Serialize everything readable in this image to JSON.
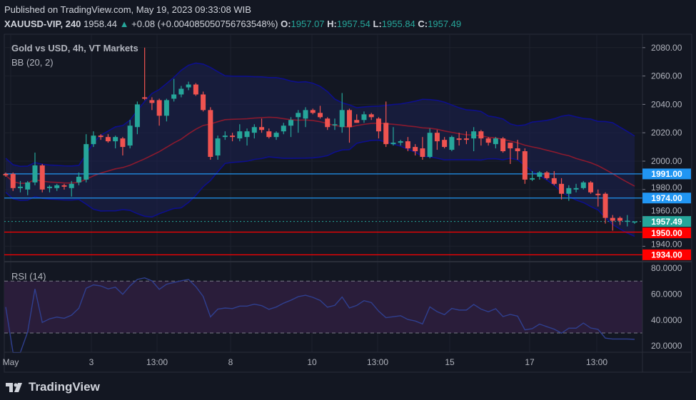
{
  "header": {
    "published": "Published on TradingView.com, May 19, 2023 09:33:08 WIB",
    "symbol": "XAUUSD-VIP, 240",
    "last": "1958.44",
    "change": "+0.08 (+0.004085050756763548%)",
    "o_label": "O:",
    "o": "1957.07",
    "h_label": "H:",
    "h": "1957.54",
    "l_label": "L:",
    "l": "1955.84",
    "c_label": "C:",
    "c": "1957.49"
  },
  "legend": {
    "title": "Gold vs USD, 4h, VT Markets",
    "bb": "BB (20, 2)",
    "rsi": "RSI (14)"
  },
  "price_axis": [
    "2080.00",
    "2060.00",
    "2040.00",
    "2020.00",
    "2000.00",
    "1980.00",
    "1960.00",
    "1940.00"
  ],
  "rsi_axis": [
    "80.0000",
    "60.0000",
    "40.0000",
    "20.0000"
  ],
  "time_axis": [
    "May",
    "3",
    "13:00",
    "8",
    "10",
    "13:00",
    "15",
    "17",
    "13:00"
  ],
  "levels": [
    {
      "price": 1991.0,
      "label": "1991.00",
      "color": "#2196f3"
    },
    {
      "price": 1974.0,
      "label": "1974.00",
      "color": "#2196f3"
    },
    {
      "price": 1950.0,
      "label": "1950.00",
      "color": "#ff0000"
    },
    {
      "price": 1934.0,
      "label": "1934.00",
      "color": "#ff0000"
    }
  ],
  "current_price": {
    "price": 1957.49,
    "label": "1957.49",
    "color": "#26a69a"
  },
  "colors": {
    "up": "#26a69a",
    "down": "#ef5350",
    "bb_band": "#0d0f8c",
    "bb_basis": "#8b1a2e",
    "rsi_line": "#2f3f8f",
    "rsi_band": "#2a1d3a"
  },
  "brand": "TradingView",
  "chart_data": {
    "type": "candlestick",
    "ylim": [
      1925,
      2085
    ],
    "rsi_levels": [
      70,
      30
    ],
    "candles": [
      [
        1991,
        1992,
        1989,
        1990
      ],
      [
        1991,
        1992,
        1979,
        1981
      ],
      [
        1981,
        1986,
        1978,
        1982
      ],
      [
        1980,
        1986,
        1976,
        1985
      ],
      [
        1985,
        2006,
        1983,
        1997
      ],
      [
        1997,
        1998,
        1978,
        1980
      ],
      [
        1981,
        1983,
        1978,
        1982
      ],
      [
        1981,
        1984,
        1979,
        1983
      ],
      [
        1983,
        1984,
        1980,
        1982
      ],
      [
        1981,
        1986,
        1975,
        1984
      ],
      [
        1985,
        1992,
        1983,
        1989
      ],
      [
        1987,
        2019,
        1985,
        2012
      ],
      [
        2012,
        2021,
        2010,
        2018
      ],
      [
        2018,
        2019,
        2015,
        2017
      ],
      [
        2017,
        2019,
        2013,
        2014
      ],
      [
        2014,
        2018,
        2009,
        2017
      ],
      [
        2016,
        2017,
        2004,
        2010
      ],
      [
        2011,
        2029,
        2009,
        2025
      ],
      [
        2024,
        2042,
        2019,
        2040
      ],
      [
        2045,
        2080,
        2043,
        2044
      ],
      [
        2043,
        2045,
        2036,
        2041
      ],
      [
        2043,
        2044,
        2025,
        2032
      ],
      [
        2032,
        2044,
        2028,
        2043
      ],
      [
        2044,
        2058,
        2042,
        2047
      ],
      [
        2047,
        2053,
        2045,
        2051
      ],
      [
        2052,
        2056,
        2050,
        2054
      ],
      [
        2054,
        2055,
        2046,
        2047
      ],
      [
        2047,
        2049,
        2035,
        2036
      ],
      [
        2036,
        2038,
        2001,
        2003
      ],
      [
        2004,
        2018,
        2001,
        2016
      ],
      [
        2017,
        2021,
        2015,
        2018
      ],
      [
        2018,
        2020,
        2014,
        2017
      ],
      [
        2016,
        2026,
        2014,
        2021
      ],
      [
        2017,
        2023,
        2011,
        2021
      ],
      [
        2020,
        2026,
        2016,
        2024
      ],
      [
        2024,
        2030,
        2020,
        2022
      ],
      [
        2021,
        2023,
        2016,
        2017
      ],
      [
        2017,
        2021,
        2015,
        2020
      ],
      [
        2021,
        2027,
        2019,
        2025
      ],
      [
        2025,
        2031,
        2017,
        2029
      ],
      [
        2031,
        2036,
        2020,
        2034
      ],
      [
        2030,
        2038,
        2024,
        2036
      ],
      [
        2036,
        2037,
        2033,
        2034
      ],
      [
        2034,
        2039,
        2030,
        2031
      ],
      [
        2030,
        2031,
        2022,
        2024
      ],
      [
        2026,
        2030,
        2022,
        2026
      ],
      [
        2024,
        2048,
        2020,
        2036
      ],
      [
        2036,
        2037,
        2013,
        2024
      ],
      [
        2029,
        2033,
        2027,
        2027
      ],
      [
        2029,
        2035,
        2027,
        2033
      ],
      [
        2033,
        2034,
        2029,
        2031
      ],
      [
        2030,
        2031,
        2016,
        2021
      ],
      [
        2027,
        2042,
        2010,
        2012
      ],
      [
        2012,
        2024,
        2011,
        2013
      ],
      [
        2013,
        2015,
        2011,
        2014
      ],
      [
        2014,
        2017,
        2007,
        2009
      ],
      [
        2010,
        2012,
        2004,
        2007
      ],
      [
        2009,
        2017,
        2001,
        2003
      ],
      [
        2003,
        2023,
        2002,
        2020
      ],
      [
        2020,
        2022,
        2008,
        2014
      ],
      [
        2015,
        2017,
        2009,
        2010
      ],
      [
        2008,
        2018,
        2007,
        2017
      ],
      [
        2016,
        2020,
        2011,
        2015
      ],
      [
        2016,
        2021,
        2012,
        2015
      ],
      [
        2016,
        2024,
        2007,
        2021
      ],
      [
        2021,
        2022,
        2011,
        2016
      ],
      [
        2016,
        2017,
        2011,
        2013
      ],
      [
        2012,
        2017,
        2009,
        2016
      ],
      [
        2016,
        2017,
        2006,
        2007
      ],
      [
        2013,
        2013,
        1998,
        2009
      ],
      [
        2009,
        2015,
        2001,
        2007
      ],
      [
        2007,
        2009,
        1984,
        1987
      ],
      [
        1987,
        1993,
        1986,
        1988
      ],
      [
        1989,
        1993,
        1987,
        1992
      ],
      [
        1992,
        1993,
        1987,
        1988
      ],
      [
        1988,
        1993,
        1983,
        1984
      ],
      [
        1984,
        1988,
        1973,
        1977
      ],
      [
        1977,
        1983,
        1972,
        1981
      ],
      [
        1980,
        1984,
        1978,
        1981
      ],
      [
        1981,
        1986,
        1980,
        1985
      ],
      [
        1985,
        1986,
        1977,
        1978
      ],
      [
        1977,
        1980,
        1968,
        1976
      ],
      [
        1977,
        1978,
        1956,
        1960
      ],
      [
        1960,
        1962,
        1951,
        1958
      ],
      [
        1960,
        1961,
        1955,
        1958
      ],
      [
        1958,
        1962,
        1954,
        1958
      ],
      [
        1957.07,
        1957.54,
        1955.84,
        1957.49
      ]
    ]
  }
}
